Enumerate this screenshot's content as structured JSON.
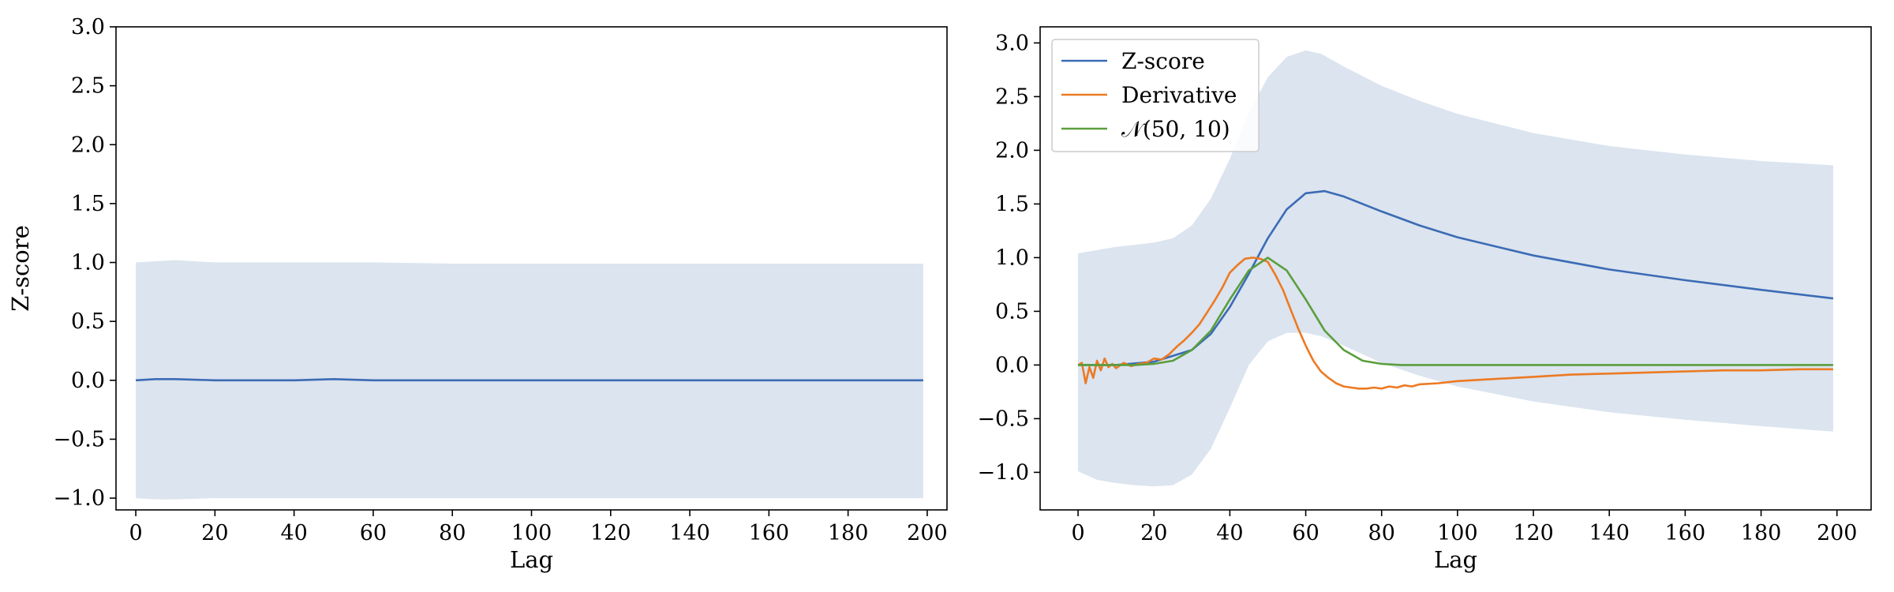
{
  "figure": {
    "background": "#ffffff"
  },
  "colors": {
    "zscore": "#3b6bb5",
    "derivative": "#ec7a23",
    "normal": "#5a9e3c",
    "band": "#dbe4ef",
    "frame": "#000000"
  },
  "chart_data": [
    {
      "type": "line",
      "xlabel": "Lag",
      "ylabel": "Z-score",
      "xlim": [
        -5,
        205
      ],
      "ylim": [
        -1.1,
        3.0
      ],
      "xticks": [
        0,
        20,
        40,
        60,
        80,
        100,
        120,
        140,
        160,
        180,
        200
      ],
      "xtick_labels": [
        "0",
        "20",
        "40",
        "60",
        "80",
        "100",
        "120",
        "140",
        "160",
        "180",
        "200"
      ],
      "yticks": [
        -1.0,
        -0.5,
        0.0,
        0.5,
        1.0,
        1.5,
        2.0,
        2.5,
        3.0
      ],
      "ytick_labels": [
        "−1.0",
        "−0.5",
        "0.0",
        "0.5",
        "1.0",
        "1.5",
        "2.0",
        "2.5",
        "3.0"
      ],
      "legend": null,
      "series": [
        {
          "key": "zscore",
          "x": [
            0,
            5,
            10,
            20,
            30,
            40,
            50,
            60,
            80,
            100,
            120,
            140,
            160,
            180,
            199
          ],
          "values": [
            0.0,
            0.01,
            0.01,
            0.0,
            0.0,
            0.0,
            0.01,
            0.0,
            0.0,
            0.0,
            0.0,
            0.0,
            0.0,
            0.0,
            0.0
          ]
        }
      ],
      "band": {
        "x": [
          0,
          5,
          10,
          20,
          40,
          60,
          80,
          100,
          120,
          140,
          160,
          180,
          199
        ],
        "upper": [
          1.0,
          1.01,
          1.02,
          1.0,
          1.0,
          1.0,
          0.99,
          0.99,
          0.99,
          0.99,
          0.99,
          0.99,
          0.99
        ],
        "lower": [
          -1.0,
          -1.01,
          -1.01,
          -1.0,
          -1.0,
          -1.0,
          -1.0,
          -1.0,
          -1.0,
          -1.0,
          -1.0,
          -1.0,
          -1.0
        ]
      }
    },
    {
      "type": "line",
      "xlabel": "Lag",
      "ylabel": "",
      "xlim": [
        -10,
        209
      ],
      "ylim": [
        -1.35,
        3.15
      ],
      "xticks": [
        0,
        20,
        40,
        60,
        80,
        100,
        120,
        140,
        160,
        180,
        200
      ],
      "xtick_labels": [
        "0",
        "20",
        "40",
        "60",
        "80",
        "100",
        "120",
        "140",
        "160",
        "180",
        "200"
      ],
      "yticks": [
        -1.0,
        -0.5,
        0.0,
        0.5,
        1.0,
        1.5,
        2.0,
        2.5,
        3.0
      ],
      "ytick_labels": [
        "−1.0",
        "−0.5",
        "0.0",
        "0.5",
        "1.0",
        "1.5",
        "2.0",
        "2.5",
        "3.0"
      ],
      "legend": {
        "position": "upper-left",
        "entries": [
          "Z-score",
          "Derivative",
          "𝒩(50, 10)"
        ]
      },
      "series": [
        {
          "key": "zscore",
          "name": "Z-score",
          "x": [
            0,
            10,
            20,
            30,
            35,
            40,
            45,
            50,
            55,
            60,
            65,
            70,
            80,
            90,
            100,
            120,
            140,
            160,
            180,
            199
          ],
          "values": [
            0.0,
            0.0,
            0.03,
            0.14,
            0.29,
            0.54,
            0.85,
            1.18,
            1.45,
            1.6,
            1.62,
            1.57,
            1.43,
            1.3,
            1.19,
            1.02,
            0.89,
            0.79,
            0.7,
            0.62
          ]
        },
        {
          "key": "derivative",
          "name": "Derivative",
          "x": [
            0,
            1,
            2,
            3,
            4,
            5,
            6,
            7,
            8,
            9,
            10,
            12,
            14,
            16,
            18,
            20,
            22,
            24,
            26,
            28,
            30,
            32,
            34,
            36,
            38,
            40,
            42,
            44,
            46,
            48,
            50,
            52,
            54,
            56,
            58,
            60,
            62,
            64,
            66,
            68,
            70,
            72,
            74,
            76,
            78,
            80,
            82,
            84,
            86,
            88,
            90,
            95,
            100,
            105,
            110,
            120,
            130,
            140,
            150,
            160,
            170,
            180,
            190,
            199
          ],
          "values": [
            0.0,
            0.02,
            -0.17,
            -0.02,
            -0.12,
            0.04,
            -0.05,
            0.06,
            -0.02,
            0.01,
            -0.03,
            0.02,
            -0.01,
            0.01,
            0.02,
            0.06,
            0.05,
            0.1,
            0.17,
            0.23,
            0.3,
            0.38,
            0.49,
            0.6,
            0.72,
            0.86,
            0.93,
            0.99,
            1.0,
            0.99,
            0.96,
            0.84,
            0.7,
            0.52,
            0.34,
            0.18,
            0.04,
            -0.06,
            -0.12,
            -0.17,
            -0.2,
            -0.21,
            -0.22,
            -0.22,
            -0.21,
            -0.22,
            -0.2,
            -0.21,
            -0.19,
            -0.2,
            -0.18,
            -0.17,
            -0.15,
            -0.14,
            -0.13,
            -0.11,
            -0.09,
            -0.08,
            -0.07,
            -0.06,
            -0.05,
            -0.05,
            -0.04,
            -0.04
          ]
        },
        {
          "key": "normal",
          "name": "𝒩(50, 10)",
          "x": [
            0,
            5,
            10,
            15,
            20,
            25,
            30,
            35,
            40,
            45,
            50,
            55,
            60,
            65,
            70,
            75,
            80,
            85,
            90,
            100,
            120,
            140,
            160,
            180,
            199
          ],
          "values": [
            0.0,
            0.0,
            0.0,
            0.0,
            0.01,
            0.04,
            0.14,
            0.32,
            0.61,
            0.88,
            1.0,
            0.88,
            0.61,
            0.32,
            0.14,
            0.04,
            0.01,
            0.0,
            0.0,
            0.0,
            0.0,
            0.0,
            0.0,
            0.0,
            0.0
          ]
        }
      ],
      "band": {
        "x": [
          0,
          5,
          10,
          15,
          20,
          25,
          30,
          35,
          40,
          45,
          50,
          55,
          60,
          64,
          70,
          80,
          90,
          100,
          120,
          140,
          160,
          180,
          199
        ],
        "upper": [
          1.04,
          1.07,
          1.1,
          1.12,
          1.14,
          1.18,
          1.3,
          1.55,
          1.92,
          2.35,
          2.68,
          2.87,
          2.93,
          2.9,
          2.78,
          2.6,
          2.46,
          2.34,
          2.16,
          2.04,
          1.96,
          1.9,
          1.86
        ],
        "lower": [
          -0.99,
          -1.07,
          -1.1,
          -1.12,
          -1.13,
          -1.12,
          -1.02,
          -0.78,
          -0.4,
          0.0,
          0.22,
          0.3,
          0.3,
          0.27,
          0.18,
          0.02,
          -0.1,
          -0.2,
          -0.34,
          -0.44,
          -0.51,
          -0.57,
          -0.62
        ]
      }
    }
  ]
}
